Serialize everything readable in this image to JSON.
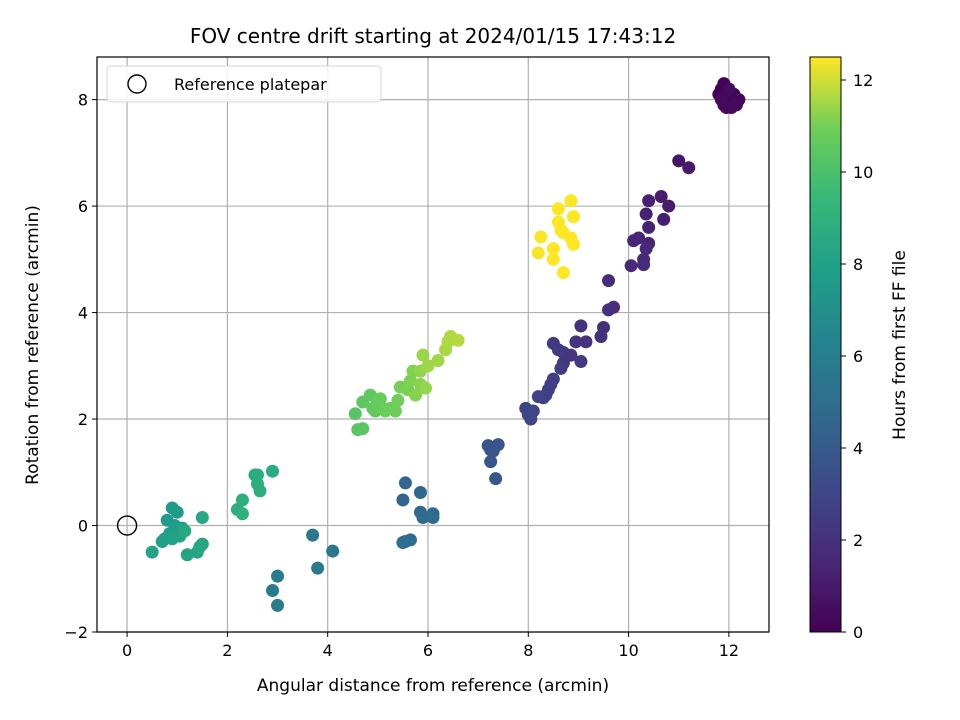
{
  "chart_data": {
    "type": "scatter",
    "title": "FOV centre drift starting at 2024/01/15 17:43:12",
    "xlabel": "Angular distance from reference (arcmin)",
    "ylabel": "Rotation from reference (arcmin)",
    "xlim": [
      -0.6,
      12.8
    ],
    "ylim": [
      -2.0,
      8.8
    ],
    "xticks": [
      0,
      2,
      4,
      6,
      8,
      10,
      12
    ],
    "yticks": [
      -2,
      0,
      2,
      4,
      6,
      8
    ],
    "grid": true,
    "legend": {
      "position": "upper-left",
      "entries": [
        "Reference platepar"
      ]
    },
    "reference_point": {
      "x": 0.0,
      "y": 0.0,
      "label": "Reference platepar"
    },
    "colorbar": {
      "label": "Hours from first FF file",
      "colormap": "viridis",
      "range": [
        0,
        12.5
      ],
      "ticks": [
        0,
        2,
        4,
        6,
        8,
        10,
        12
      ]
    },
    "series": [
      {
        "values": [
          [
            11.8,
            8.1,
            0.0
          ],
          [
            11.85,
            8.2,
            0.05
          ],
          [
            11.9,
            8.3,
            0.1
          ],
          [
            11.95,
            8.15,
            0.12
          ],
          [
            12.0,
            8.05,
            0.15
          ],
          [
            12.05,
            7.95,
            0.18
          ],
          [
            12.1,
            8.1,
            0.2
          ],
          [
            12.15,
            7.9,
            0.22
          ],
          [
            12.2,
            8.0,
            0.25
          ],
          [
            11.9,
            7.9,
            0.28
          ],
          [
            11.95,
            7.85,
            0.3
          ],
          [
            12.05,
            7.85,
            0.32
          ],
          [
            12.1,
            7.9,
            0.35
          ],
          [
            11.85,
            8.0,
            0.38
          ],
          [
            12.0,
            8.2,
            0.4
          ],
          [
            11.0,
            6.85,
            0.9
          ],
          [
            11.2,
            6.72,
            1.0
          ],
          [
            10.8,
            6.0,
            1.1
          ],
          [
            10.65,
            6.18,
            1.15
          ],
          [
            10.7,
            5.75,
            1.2
          ],
          [
            10.4,
            6.1,
            1.25
          ],
          [
            10.35,
            5.85,
            1.3
          ],
          [
            10.4,
            5.6,
            1.35
          ],
          [
            10.4,
            5.3,
            1.4
          ],
          [
            10.2,
            5.4,
            1.45
          ],
          [
            10.1,
            5.35,
            1.5
          ],
          [
            10.35,
            5.2,
            1.55
          ],
          [
            10.3,
            5.0,
            1.6
          ],
          [
            10.3,
            4.9,
            1.65
          ],
          [
            10.05,
            4.88,
            1.7
          ],
          [
            9.6,
            4.6,
            1.8
          ],
          [
            9.7,
            4.1,
            1.85
          ],
          [
            9.6,
            4.05,
            1.9
          ],
          [
            9.5,
            3.72,
            1.95
          ],
          [
            9.05,
            3.75,
            2.0
          ],
          [
            9.45,
            3.55,
            2.05
          ],
          [
            9.15,
            3.45,
            2.1
          ],
          [
            8.95,
            3.45,
            2.15
          ],
          [
            8.85,
            3.2,
            2.2
          ],
          [
            8.7,
            3.25,
            2.25
          ],
          [
            8.7,
            3.05,
            2.3
          ],
          [
            9.05,
            3.08,
            2.35
          ],
          [
            8.5,
            3.42,
            2.4
          ],
          [
            8.6,
            3.3,
            2.45
          ],
          [
            8.65,
            2.95,
            2.5
          ],
          [
            8.5,
            2.75,
            2.55
          ],
          [
            8.45,
            2.65,
            2.6
          ],
          [
            8.4,
            2.55,
            2.65
          ],
          [
            8.35,
            2.45,
            2.7
          ],
          [
            8.3,
            2.4,
            2.75
          ],
          [
            8.2,
            2.42,
            2.8
          ],
          [
            8.1,
            2.15,
            2.85
          ],
          [
            7.95,
            2.2,
            2.9
          ],
          [
            8.0,
            2.08,
            2.95
          ],
          [
            8.05,
            2.0,
            3.0
          ],
          [
            7.25,
            1.42,
            3.6
          ],
          [
            7.2,
            1.5,
            3.65
          ],
          [
            7.3,
            1.4,
            3.7
          ],
          [
            7.25,
            1.2,
            3.75
          ],
          [
            7.4,
            1.52,
            3.8
          ],
          [
            7.35,
            0.88,
            3.85
          ],
          [
            5.55,
            0.8,
            4.6
          ],
          [
            5.5,
            0.48,
            4.65
          ],
          [
            5.85,
            0.62,
            4.7
          ],
          [
            5.85,
            0.25,
            4.75
          ],
          [
            5.9,
            0.15,
            4.8
          ],
          [
            6.1,
            0.22,
            4.85
          ],
          [
            6.1,
            0.15,
            4.9
          ],
          [
            5.55,
            -0.3,
            4.95
          ],
          [
            5.65,
            -0.27,
            5.0
          ],
          [
            5.5,
            -0.32,
            5.05
          ],
          [
            3.7,
            -0.18,
            5.6
          ],
          [
            4.1,
            -0.48,
            5.65
          ],
          [
            3.8,
            -0.8,
            5.7
          ],
          [
            3.0,
            -0.95,
            5.8
          ],
          [
            2.9,
            -1.22,
            5.85
          ],
          [
            3.0,
            -1.5,
            5.9
          ],
          [
            2.9,
            1.02,
            8.6
          ],
          [
            2.55,
            0.95,
            8.65
          ],
          [
            2.6,
            0.95,
            8.7
          ],
          [
            2.6,
            0.78,
            8.75
          ],
          [
            2.65,
            0.65,
            8.8
          ],
          [
            2.3,
            0.48,
            8.85
          ],
          [
            2.2,
            0.3,
            8.9
          ],
          [
            2.3,
            0.22,
            8.95
          ],
          [
            0.9,
            0.33,
            7.6
          ],
          [
            1.0,
            0.25,
            7.65
          ],
          [
            0.8,
            0.1,
            7.7
          ],
          [
            0.95,
            0.0,
            7.75
          ],
          [
            1.1,
            -0.05,
            7.8
          ],
          [
            1.0,
            -0.1,
            7.85
          ],
          [
            0.85,
            -0.15,
            7.9
          ],
          [
            0.75,
            -0.25,
            7.95
          ],
          [
            0.7,
            -0.3,
            8.0
          ],
          [
            0.9,
            -0.25,
            8.05
          ],
          [
            1.05,
            -0.2,
            8.1
          ],
          [
            0.5,
            -0.5,
            8.15
          ],
          [
            1.2,
            -0.55,
            8.2
          ],
          [
            1.4,
            -0.5,
            8.25
          ],
          [
            1.5,
            -0.35,
            8.3
          ],
          [
            1.45,
            -0.4,
            8.35
          ],
          [
            1.5,
            0.15,
            8.4
          ],
          [
            1.15,
            -0.1,
            8.45
          ],
          [
            4.55,
            2.1,
            10.3
          ],
          [
            4.6,
            1.8,
            10.35
          ],
          [
            4.7,
            1.82,
            10.4
          ],
          [
            4.7,
            2.32,
            10.45
          ],
          [
            4.85,
            2.45,
            10.5
          ],
          [
            4.9,
            2.2,
            10.55
          ],
          [
            4.95,
            2.15,
            10.6
          ],
          [
            5.0,
            2.3,
            10.65
          ],
          [
            5.05,
            2.38,
            10.7
          ],
          [
            5.1,
            2.2,
            10.75
          ],
          [
            5.15,
            2.15,
            10.8
          ],
          [
            5.25,
            2.2,
            10.85
          ],
          [
            5.35,
            2.15,
            10.9
          ],
          [
            5.4,
            2.35,
            10.95
          ],
          [
            5.45,
            2.6,
            11.0
          ],
          [
            5.6,
            2.55,
            11.05
          ],
          [
            5.65,
            2.72,
            11.1
          ],
          [
            5.7,
            2.9,
            11.15
          ],
          [
            5.75,
            2.45,
            11.2
          ],
          [
            5.85,
            2.65,
            11.25
          ],
          [
            5.85,
            2.9,
            11.3
          ],
          [
            5.95,
            2.58,
            11.35
          ],
          [
            5.9,
            3.2,
            11.4
          ],
          [
            6.0,
            3.0,
            11.45
          ],
          [
            6.2,
            3.1,
            11.5
          ],
          [
            6.35,
            3.3,
            11.55
          ],
          [
            6.4,
            3.45,
            11.6
          ],
          [
            6.45,
            3.55,
            11.65
          ],
          [
            6.6,
            3.48,
            11.7
          ],
          [
            8.2,
            5.12,
            12.4
          ],
          [
            8.25,
            5.42,
            12.45
          ],
          [
            8.5,
            5.2,
            12.5
          ],
          [
            8.5,
            5.0,
            12.5
          ],
          [
            8.6,
            5.95,
            12.5
          ],
          [
            8.6,
            5.7,
            12.5
          ],
          [
            8.65,
            5.55,
            12.5
          ],
          [
            8.7,
            5.5,
            12.5
          ],
          [
            8.7,
            4.75,
            12.5
          ],
          [
            8.85,
            6.1,
            12.5
          ],
          [
            8.9,
            5.8,
            12.5
          ],
          [
            8.85,
            5.4,
            12.5
          ],
          [
            8.9,
            5.28,
            12.5
          ]
        ]
      }
    ]
  }
}
